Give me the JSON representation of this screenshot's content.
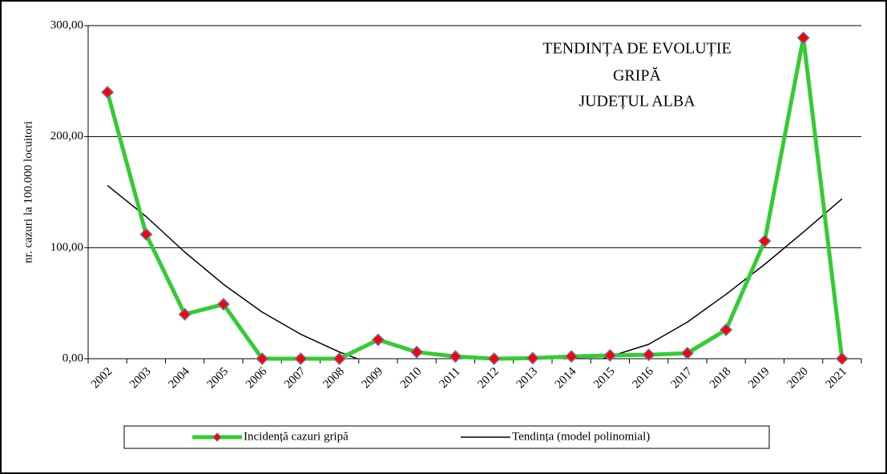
{
  "chart_data": {
    "type": "line",
    "title": [
      "TENDINȚA DE EVOLUȚIE",
      "GRIPĂ",
      "JUDEȚUL  ALBA"
    ],
    "y_label": "nr. cazuri la 100.000 locuitori",
    "categories": [
      "2002",
      "2003",
      "2004",
      "2005",
      "2006",
      "2007",
      "2008",
      "2009",
      "2010",
      "2011",
      "2012",
      "2013",
      "2014",
      "2015",
      "2016",
      "2017",
      "2018",
      "2019",
      "2020",
      "2021"
    ],
    "series": [
      {
        "name": "Incidență cazuri gripă",
        "color": "#33cc33",
        "marker_color": "#ff0000",
        "values": [
          240,
          112,
          40,
          49,
          0,
          0,
          0,
          17,
          6,
          2,
          0,
          0.5,
          2,
          3,
          3.5,
          5,
          26,
          106,
          289,
          0
        ]
      },
      {
        "name": "Tendința (model polinomial)",
        "color": "#000000",
        "values": [
          156,
          128,
          96,
          67,
          42,
          22,
          6,
          -7,
          -16,
          -20,
          -20,
          -16,
          -9,
          2,
          13,
          33,
          58,
          85,
          114,
          144
        ]
      }
    ],
    "ylim": [
      0,
      300
    ],
    "yticks": [
      {
        "value": 0,
        "label": "0,00"
      },
      {
        "value": 100,
        "label": "100,00"
      },
      {
        "value": 200,
        "label": "200,00"
      },
      {
        "value": 300,
        "label": "300,00"
      }
    ],
    "grid": true,
    "legend": "bottom"
  }
}
